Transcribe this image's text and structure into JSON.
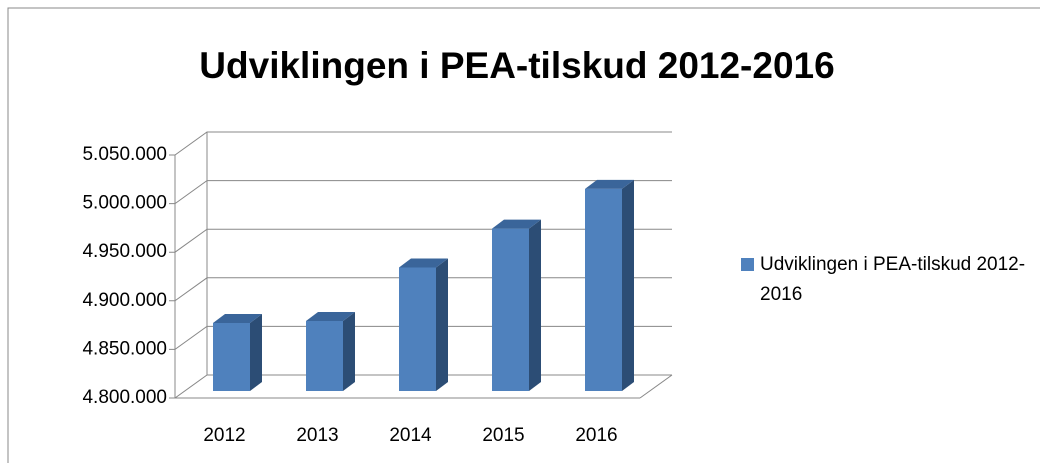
{
  "chart_data": {
    "type": "bar3d",
    "title": "Udviklingen i PEA-tilskud 2012-2016",
    "categories": [
      "2012",
      "2013",
      "2014",
      "2015",
      "2016"
    ],
    "series": [
      {
        "name": "Udviklingen i PEA-tilskud 2012-2016",
        "color": "#4f81bd",
        "values": [
          4870000,
          4872000,
          4927000,
          4967000,
          5008000
        ]
      }
    ],
    "ylim": [
      4800000,
      5050000
    ],
    "yticks": [
      {
        "value": 4800000,
        "label": "4.800.000"
      },
      {
        "value": 4850000,
        "label": "4.850.000"
      },
      {
        "value": 4900000,
        "label": "4.900.000"
      },
      {
        "value": 4950000,
        "label": "4.950.000"
      },
      {
        "value": 5000000,
        "label": "5.000.000"
      },
      {
        "value": 5050000,
        "label": "5.050.000"
      }
    ],
    "grid": true,
    "legend": "right"
  }
}
